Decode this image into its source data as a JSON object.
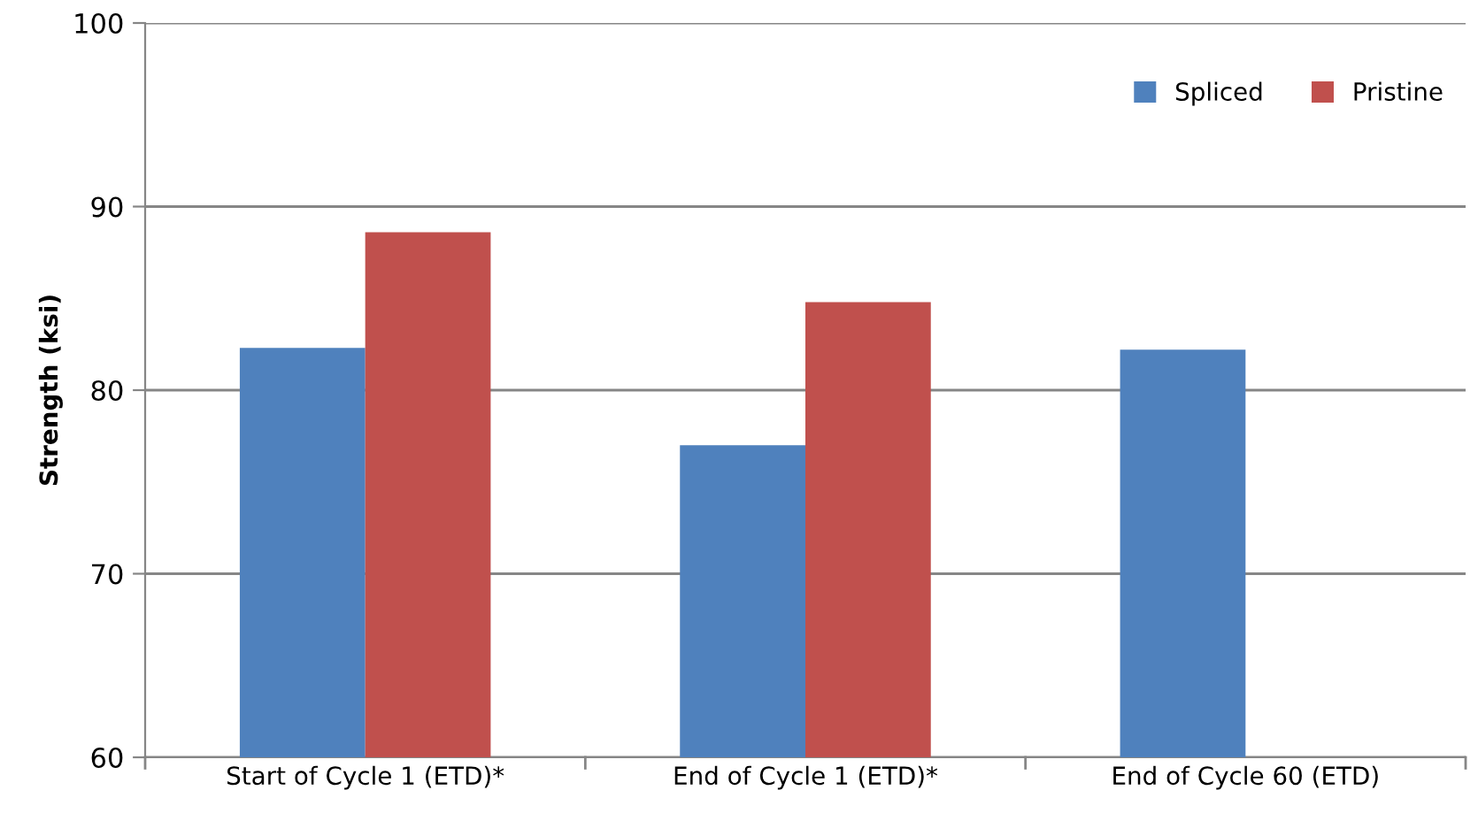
{
  "chart_data": {
    "type": "bar",
    "ylabel": "Strength (ksi)",
    "categories": [
      "Start of Cycle 1 (ETD)*",
      "End of Cycle 1 (ETD)*",
      "End of Cycle 60 (ETD)"
    ],
    "series": [
      {
        "name": "Spliced",
        "color": "#4f81bd",
        "values": [
          82.3,
          77.0,
          82.2
        ]
      },
      {
        "name": "Pristine",
        "color": "#c0504d",
        "values": [
          88.6,
          84.8,
          null
        ]
      }
    ],
    "ylim": [
      60,
      100
    ],
    "yticks": [
      60,
      70,
      80,
      90,
      100
    ],
    "grid": "y",
    "legend": "top right"
  }
}
